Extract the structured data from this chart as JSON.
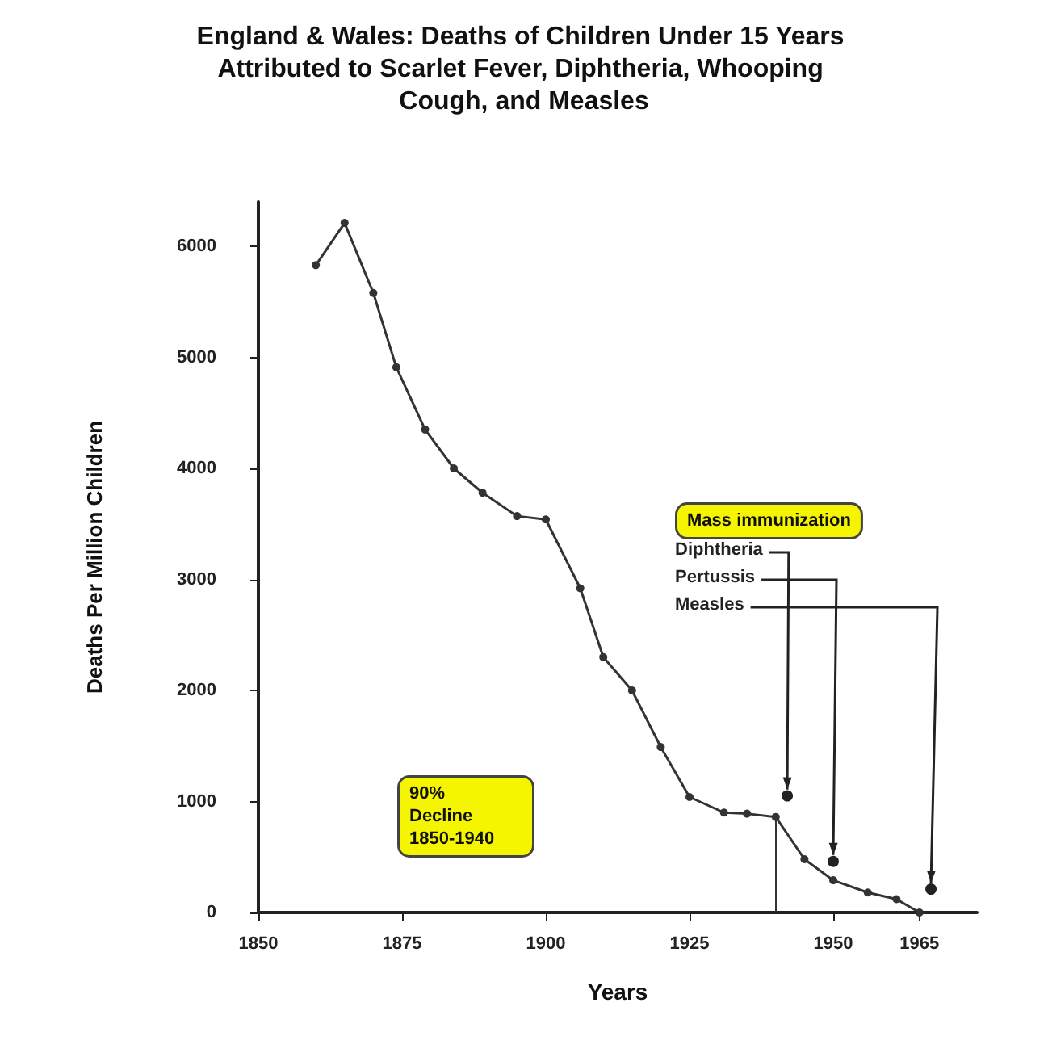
{
  "chart_data": {
    "type": "line",
    "title": "England & Wales: Deaths of Children Under 15 Years Attributed to Scarlet Fever, Diphtheria, Whooping Cough, and Measles",
    "xlabel": "Years",
    "ylabel": "Deaths Per Million Children",
    "x": [
      1860,
      1865,
      1870,
      1874,
      1879,
      1884,
      1889,
      1895,
      1900,
      1906,
      1910,
      1915,
      1920,
      1925,
      1931,
      1935,
      1940,
      1945,
      1950,
      1956,
      1961,
      1965
    ],
    "series": [
      {
        "color": "#333333",
        "values": [
          5830,
          6210,
          5580,
          4910,
          4350,
          4000,
          3780,
          3570,
          3540,
          2920,
          2300,
          2000,
          1490,
          1040,
          900,
          890,
          860,
          480,
          290,
          180,
          120,
          0
        ]
      }
    ],
    "xlim": [
      1850,
      1975
    ],
    "xticks": [
      1850,
      1875,
      1900,
      1925,
      1950,
      1965
    ],
    "ylim": [
      0,
      6400
    ],
    "yticks": [
      0,
      1000,
      2000,
      3000,
      4000,
      5000,
      6000
    ],
    "marker": "circle",
    "line_style": "solid",
    "ref_lines": [
      {
        "axis": "x",
        "value": 1940,
        "color": "#333333"
      }
    ],
    "annotations": [
      "Mass immunization",
      {
        "text": "Diphtheria",
        "x": 1942,
        "y": 1050
      },
      {
        "text": "Pertussis",
        "x": 1950,
        "y": 460
      },
      {
        "text": "Measles",
        "x": 1967,
        "y": 210
      },
      "90% Decline 1850-1940"
    ]
  }
}
